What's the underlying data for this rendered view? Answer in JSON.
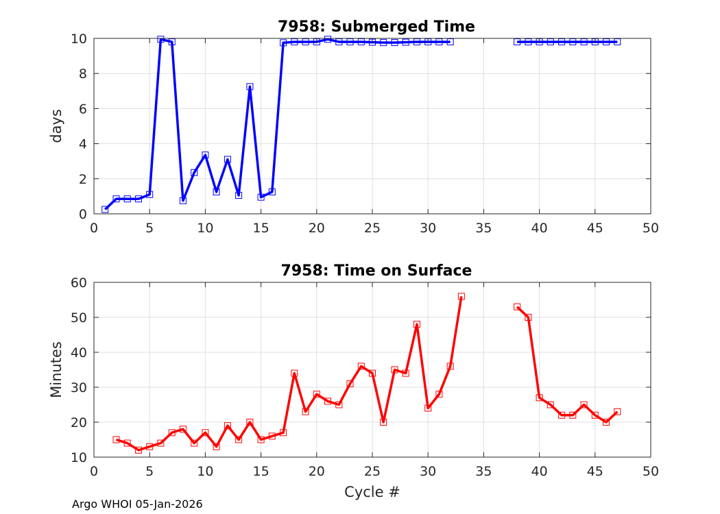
{
  "footer": "Argo WHOI 05-Jan-2026",
  "chart_data": [
    {
      "type": "line",
      "title": "7958: Submerged Time",
      "xlabel": "",
      "ylabel": "days",
      "xlim": [
        0,
        50
      ],
      "ylim": [
        0,
        10
      ],
      "xticks": [
        0,
        5,
        10,
        15,
        20,
        25,
        30,
        35,
        40,
        45,
        50
      ],
      "yticks": [
        0,
        2,
        4,
        6,
        8,
        10
      ],
      "grid": true,
      "color": "#0000ff",
      "series": [
        {
          "name": "Submerged Time",
          "x": [
            1,
            2,
            3,
            4,
            5,
            6,
            7,
            8,
            9,
            10,
            11,
            12,
            13,
            14,
            15,
            16,
            17,
            18,
            19,
            20,
            21,
            22,
            23,
            24,
            25,
            26,
            27,
            28,
            29,
            30,
            31,
            32,
            null,
            38,
            39,
            40,
            41,
            42,
            43,
            44,
            45,
            46,
            47
          ],
          "y": [
            0.25,
            0.85,
            0.85,
            0.85,
            1.1,
            9.95,
            9.8,
            0.75,
            2.35,
            3.35,
            1.25,
            3.1,
            1.05,
            7.25,
            0.95,
            1.25,
            9.75,
            9.8,
            9.8,
            9.8,
            9.95,
            9.8,
            9.8,
            9.8,
            9.78,
            9.76,
            9.76,
            9.78,
            9.8,
            9.8,
            9.8,
            9.8,
            null,
            9.8,
            9.8,
            9.8,
            9.8,
            9.8,
            9.8,
            9.8,
            9.8,
            9.8,
            9.8
          ]
        }
      ]
    },
    {
      "type": "line",
      "title": "7958: Time on Surface",
      "xlabel": "Cycle #",
      "ylabel": "Minutes",
      "xlim": [
        0,
        50
      ],
      "ylim": [
        10,
        60
      ],
      "xticks": [
        0,
        5,
        10,
        15,
        20,
        25,
        30,
        35,
        40,
        45,
        50
      ],
      "yticks": [
        10,
        20,
        30,
        40,
        50,
        60
      ],
      "grid": true,
      "color": "#ff0000",
      "series": [
        {
          "name": "Time on Surface",
          "x": [
            2,
            3,
            4,
            5,
            6,
            7,
            8,
            9,
            10,
            11,
            12,
            13,
            14,
            15,
            16,
            17,
            18,
            19,
            20,
            21,
            22,
            23,
            24,
            25,
            26,
            27,
            28,
            29,
            30,
            31,
            32,
            33,
            null,
            38,
            39,
            40,
            41,
            42,
            43,
            44,
            45,
            46,
            47
          ],
          "y": [
            15,
            14,
            12,
            13,
            14,
            17,
            18,
            14,
            17,
            13,
            19,
            15,
            20,
            15,
            16,
            17,
            34,
            23,
            28,
            26,
            25,
            31,
            36,
            34,
            20,
            35,
            34,
            48,
            24,
            28,
            36,
            56,
            null,
            53,
            50,
            27,
            25,
            22,
            22,
            25,
            22,
            20,
            23
          ]
        }
      ]
    }
  ]
}
